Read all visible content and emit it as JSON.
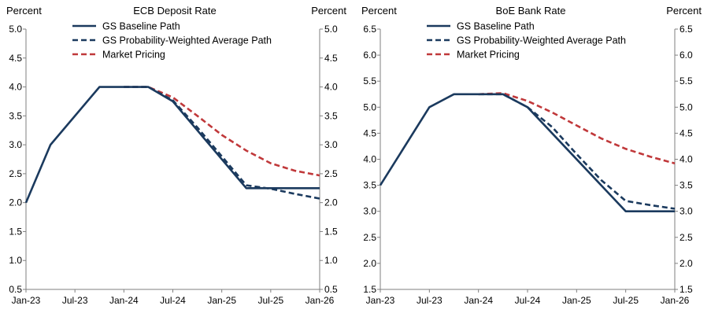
{
  "colors": {
    "baseline": "#1b3a5e",
    "weighted": "#1b3a5e",
    "market": "#c0383a",
    "axis": "#7f7f7f"
  },
  "chart_data": [
    {
      "type": "line",
      "title": "ECB Deposit Rate",
      "ylabel_left": "Percent",
      "ylabel_right": "Percent",
      "ylim": [
        0.5,
        5.0
      ],
      "yticks": [
        "0.5",
        "1.0",
        "1.5",
        "2.0",
        "2.5",
        "3.0",
        "3.5",
        "4.0",
        "4.5",
        "5.0"
      ],
      "xlim": [
        0,
        36
      ],
      "xticks": [
        {
          "x": 0,
          "label": "Jan-23"
        },
        {
          "x": 6,
          "label": "Jul-23"
        },
        {
          "x": 12,
          "label": "Jan-24"
        },
        {
          "x": 18,
          "label": "Jul-24"
        },
        {
          "x": 24,
          "label": "Jan-25"
        },
        {
          "x": 30,
          "label": "Jul-25"
        },
        {
          "x": 36,
          "label": "Jan-26"
        }
      ],
      "legend": {
        "placement": "top-center",
        "entries": [
          {
            "key": "baseline",
            "label": "GS Baseline Path"
          },
          {
            "key": "weighted",
            "label": "GS Probability-Weighted Average Path"
          },
          {
            "key": "market",
            "label": "Market Pricing"
          }
        ]
      },
      "series": [
        {
          "name": "GS Baseline Path",
          "key": "baseline",
          "style": "solid",
          "points": [
            [
              0,
              2.0
            ],
            [
              3,
              3.0
            ],
            [
              9,
              4.0
            ],
            [
              15,
              4.0
            ],
            [
              18,
              3.75
            ],
            [
              27,
              2.25
            ],
            [
              36,
              2.25
            ]
          ]
        },
        {
          "name": "GS Probability-Weighted Average Path",
          "key": "weighted",
          "style": "dash",
          "points": [
            [
              12,
              4.0
            ],
            [
              15,
              4.0
            ],
            [
              18,
              3.77
            ],
            [
              21,
              3.3
            ],
            [
              24,
              2.8
            ],
            [
              27,
              2.3
            ],
            [
              30,
              2.24
            ],
            [
              33,
              2.15
            ],
            [
              36,
              2.07
            ]
          ]
        },
        {
          "name": "Market Pricing",
          "key": "market",
          "style": "dash",
          "points": [
            [
              12,
              4.0
            ],
            [
              15,
              4.0
            ],
            [
              18,
              3.82
            ],
            [
              21,
              3.5
            ],
            [
              24,
              3.17
            ],
            [
              27,
              2.9
            ],
            [
              30,
              2.68
            ],
            [
              33,
              2.55
            ],
            [
              36,
              2.47
            ]
          ]
        }
      ]
    },
    {
      "type": "line",
      "title": "BoE Bank Rate",
      "ylabel_left": "Percent",
      "ylabel_right": "Percent",
      "ylim": [
        1.5,
        6.5
      ],
      "yticks": [
        "1.5",
        "2.0",
        "2.5",
        "3.0",
        "3.5",
        "4.0",
        "4.5",
        "5.0",
        "5.5",
        "6.0",
        "6.5"
      ],
      "xlim": [
        0,
        36
      ],
      "xticks": [
        {
          "x": 0,
          "label": "Jan-23"
        },
        {
          "x": 6,
          "label": "Jul-23"
        },
        {
          "x": 12,
          "label": "Jan-24"
        },
        {
          "x": 18,
          "label": "Jul-24"
        },
        {
          "x": 24,
          "label": "Jan-25"
        },
        {
          "x": 30,
          "label": "Jul-25"
        },
        {
          "x": 36,
          "label": "Jan-26"
        }
      ],
      "legend": {
        "placement": "top-center",
        "entries": [
          {
            "key": "baseline",
            "label": "GS Baseline Path"
          },
          {
            "key": "weighted",
            "label": "GS Probability-Weighted Average Path"
          },
          {
            "key": "market",
            "label": "Market Pricing"
          }
        ]
      },
      "series": [
        {
          "name": "GS Baseline Path",
          "key": "baseline",
          "style": "solid",
          "points": [
            [
              0,
              3.5
            ],
            [
              6,
              5.0
            ],
            [
              9,
              5.25
            ],
            [
              15,
              5.25
            ],
            [
              18,
              5.0
            ],
            [
              30,
              3.0
            ],
            [
              36,
              3.0
            ]
          ]
        },
        {
          "name": "GS Probability-Weighted Average Path",
          "key": "weighted",
          "style": "dash",
          "points": [
            [
              12,
              5.25
            ],
            [
              15,
              5.25
            ],
            [
              18,
              5.0
            ],
            [
              21,
              4.62
            ],
            [
              24,
              4.1
            ],
            [
              27,
              3.6
            ],
            [
              30,
              3.2
            ],
            [
              33,
              3.12
            ],
            [
              36,
              3.05
            ]
          ]
        },
        {
          "name": "Market Pricing",
          "key": "market",
          "style": "dash",
          "points": [
            [
              12,
              5.25
            ],
            [
              15,
              5.27
            ],
            [
              18,
              5.12
            ],
            [
              21,
              4.9
            ],
            [
              24,
              4.65
            ],
            [
              27,
              4.4
            ],
            [
              30,
              4.2
            ],
            [
              33,
              4.05
            ],
            [
              36,
              3.92
            ]
          ]
        }
      ]
    }
  ]
}
